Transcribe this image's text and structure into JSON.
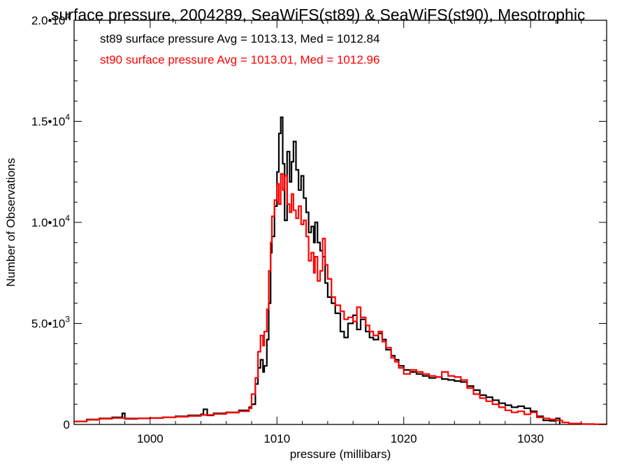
{
  "chart_data": {
    "type": "line",
    "title": "surface pressure, 2004289, SeaWiFS(st89) & SeaWiFS(st90), Mesotrophic",
    "xlabel": "pressure (millibars)",
    "ylabel": "Number of Observations",
    "xlim": [
      994,
      1036
    ],
    "ylim": [
      0,
      20000
    ],
    "x_ticks": [
      1000,
      1010,
      1020,
      1030
    ],
    "x_tick_labels": [
      "1000",
      "1010",
      "1020",
      "1030"
    ],
    "y_ticks": [
      0,
      5000,
      10000,
      15000,
      20000
    ],
    "y_tick_labels": [
      {
        "mantissa": "0",
        "exponent": ""
      },
      {
        "mantissa": "5.0•10",
        "exponent": "3"
      },
      {
        "mantissa": "1.0•10",
        "exponent": "4"
      },
      {
        "mantissa": "1.5•10",
        "exponent": "4"
      },
      {
        "mantissa": "2.0•10",
        "exponent": "4"
      }
    ],
    "grid": false,
    "legend_position": "top-left inside",
    "series": [
      {
        "name": "st89",
        "legend_text": "st89 surface pressure Avg = 1013.13, Med = 1012.84",
        "color": "#000000",
        "points": [
          [
            994.0,
            150
          ],
          [
            995.0,
            250
          ],
          [
            996.0,
            300
          ],
          [
            997.0,
            350
          ],
          [
            997.8,
            550
          ],
          [
            998.0,
            280
          ],
          [
            999.0,
            300
          ],
          [
            1000.0,
            320
          ],
          [
            1001.0,
            350
          ],
          [
            1002.0,
            400
          ],
          [
            1003.0,
            450
          ],
          [
            1004.0,
            500
          ],
          [
            1004.2,
            750
          ],
          [
            1004.5,
            450
          ],
          [
            1005.0,
            550
          ],
          [
            1006.0,
            600
          ],
          [
            1007.0,
            700
          ],
          [
            1007.8,
            850
          ],
          [
            1008.0,
            1000
          ],
          [
            1008.3,
            2000
          ],
          [
            1008.5,
            2800
          ],
          [
            1008.7,
            3200
          ],
          [
            1008.9,
            2600
          ],
          [
            1009.0,
            2900
          ],
          [
            1009.2,
            4200
          ],
          [
            1009.35,
            6000
          ],
          [
            1009.5,
            8500
          ],
          [
            1009.6,
            9300
          ],
          [
            1009.8,
            10800
          ],
          [
            1010.0,
            12500
          ],
          [
            1010.15,
            14400
          ],
          [
            1010.3,
            15200
          ],
          [
            1010.45,
            12900
          ],
          [
            1010.6,
            10100
          ],
          [
            1010.8,
            13500
          ],
          [
            1011.0,
            12000
          ],
          [
            1011.15,
            13000
          ],
          [
            1011.3,
            14000
          ],
          [
            1011.5,
            12600
          ],
          [
            1011.7,
            11600
          ],
          [
            1011.9,
            12300
          ],
          [
            1012.1,
            11200
          ],
          [
            1012.3,
            10500
          ],
          [
            1012.5,
            9500
          ],
          [
            1012.7,
            9800
          ],
          [
            1012.9,
            9000
          ],
          [
            1013.0,
            10000
          ],
          [
            1013.2,
            9000
          ],
          [
            1013.4,
            8600
          ],
          [
            1013.6,
            8300
          ],
          [
            1013.8,
            7000
          ],
          [
            1014.0,
            6300
          ],
          [
            1014.3,
            6000
          ],
          [
            1014.6,
            5500
          ],
          [
            1015.0,
            4600
          ],
          [
            1015.3,
            4300
          ],
          [
            1015.6,
            5000
          ],
          [
            1016.0,
            5400
          ],
          [
            1016.3,
            4700
          ],
          [
            1016.6,
            5200
          ],
          [
            1017.0,
            4600
          ],
          [
            1017.3,
            4300
          ],
          [
            1017.6,
            4200
          ],
          [
            1018.0,
            4500
          ],
          [
            1018.3,
            4200
          ],
          [
            1018.6,
            3700
          ],
          [
            1019.0,
            3400
          ],
          [
            1019.3,
            3200
          ],
          [
            1019.6,
            2900
          ],
          [
            1020.0,
            2700
          ],
          [
            1020.5,
            2600
          ],
          [
            1021.0,
            2500
          ],
          [
            1021.5,
            2400
          ],
          [
            1022.0,
            2300
          ],
          [
            1022.5,
            2350
          ],
          [
            1023.0,
            2250
          ],
          [
            1023.5,
            2200
          ],
          [
            1024.0,
            2150
          ],
          [
            1024.5,
            2100
          ],
          [
            1025.0,
            1900
          ],
          [
            1025.5,
            1700
          ],
          [
            1026.0,
            1450
          ],
          [
            1026.5,
            1350
          ],
          [
            1027.0,
            1200
          ],
          [
            1027.5,
            1050
          ],
          [
            1028.0,
            950
          ],
          [
            1028.5,
            850
          ],
          [
            1029.0,
            900
          ],
          [
            1029.5,
            800
          ],
          [
            1030.0,
            650
          ],
          [
            1030.5,
            400
          ],
          [
            1031.0,
            200
          ],
          [
            1031.5,
            180
          ],
          [
            1032.0,
            300
          ],
          [
            1032.3,
            0
          ]
        ]
      },
      {
        "name": "st90",
        "legend_text": "st90 surface pressure Avg = 1013.01, Med = 1012.96",
        "color": "#ff0000",
        "points": [
          [
            994.0,
            150
          ],
          [
            995.0,
            230
          ],
          [
            996.0,
            280
          ],
          [
            997.0,
            320
          ],
          [
            998.0,
            300
          ],
          [
            999.0,
            300
          ],
          [
            1000.0,
            320
          ],
          [
            1001.0,
            350
          ],
          [
            1002.0,
            380
          ],
          [
            1003.0,
            420
          ],
          [
            1004.0,
            470
          ],
          [
            1005.0,
            520
          ],
          [
            1006.0,
            580
          ],
          [
            1007.0,
            650
          ],
          [
            1007.8,
            800
          ],
          [
            1008.0,
            1500
          ],
          [
            1008.3,
            2300
          ],
          [
            1008.5,
            3600
          ],
          [
            1008.7,
            4400
          ],
          [
            1008.9,
            3900
          ],
          [
            1009.0,
            4600
          ],
          [
            1009.2,
            5700
          ],
          [
            1009.35,
            7600
          ],
          [
            1009.5,
            9000
          ],
          [
            1009.6,
            10300
          ],
          [
            1009.8,
            11100
          ],
          [
            1010.0,
            11900
          ],
          [
            1010.15,
            10900
          ],
          [
            1010.3,
            12400
          ],
          [
            1010.45,
            11600
          ],
          [
            1010.6,
            12300
          ],
          [
            1010.8,
            10900
          ],
          [
            1011.0,
            10500
          ],
          [
            1011.15,
            11400
          ],
          [
            1011.3,
            10600
          ],
          [
            1011.5,
            10200
          ],
          [
            1011.7,
            10800
          ],
          [
            1011.9,
            9900
          ],
          [
            1012.1,
            10100
          ],
          [
            1012.3,
            9300
          ],
          [
            1012.5,
            8100
          ],
          [
            1012.7,
            8500
          ],
          [
            1012.9,
            7500
          ],
          [
            1013.0,
            8300
          ],
          [
            1013.2,
            7100
          ],
          [
            1013.4,
            7600
          ],
          [
            1013.6,
            9200
          ],
          [
            1013.8,
            7900
          ],
          [
            1014.0,
            7200
          ],
          [
            1014.3,
            6300
          ],
          [
            1014.6,
            5900
          ],
          [
            1015.0,
            5600
          ],
          [
            1015.3,
            5200
          ],
          [
            1015.6,
            5300
          ],
          [
            1016.0,
            5100
          ],
          [
            1016.3,
            5800
          ],
          [
            1016.6,
            5300
          ],
          [
            1017.0,
            4900
          ],
          [
            1017.3,
            4600
          ],
          [
            1017.6,
            4400
          ],
          [
            1018.0,
            4600
          ],
          [
            1018.3,
            4100
          ],
          [
            1018.6,
            3800
          ],
          [
            1019.0,
            3300
          ],
          [
            1019.3,
            3100
          ],
          [
            1019.6,
            2800
          ],
          [
            1020.0,
            2500
          ],
          [
            1020.5,
            2700
          ],
          [
            1021.0,
            2600
          ],
          [
            1021.5,
            2500
          ],
          [
            1022.0,
            2400
          ],
          [
            1022.5,
            2350
          ],
          [
            1023.0,
            2600
          ],
          [
            1023.5,
            2400
          ],
          [
            1024.0,
            2350
          ],
          [
            1024.5,
            2200
          ],
          [
            1025.0,
            1800
          ],
          [
            1025.5,
            1500
          ],
          [
            1026.0,
            1300
          ],
          [
            1026.5,
            1150
          ],
          [
            1027.0,
            1000
          ],
          [
            1027.5,
            850
          ],
          [
            1028.0,
            700
          ],
          [
            1028.5,
            600
          ],
          [
            1029.0,
            650
          ],
          [
            1029.5,
            500
          ],
          [
            1030.0,
            600
          ],
          [
            1030.5,
            350
          ],
          [
            1031.0,
            300
          ],
          [
            1031.5,
            250
          ],
          [
            1032.0,
            200
          ],
          [
            1032.5,
            100
          ],
          [
            1033.0,
            50
          ],
          [
            1034.0,
            20
          ],
          [
            1035.0,
            10
          ],
          [
            1036.0,
            0
          ]
        ]
      }
    ]
  }
}
